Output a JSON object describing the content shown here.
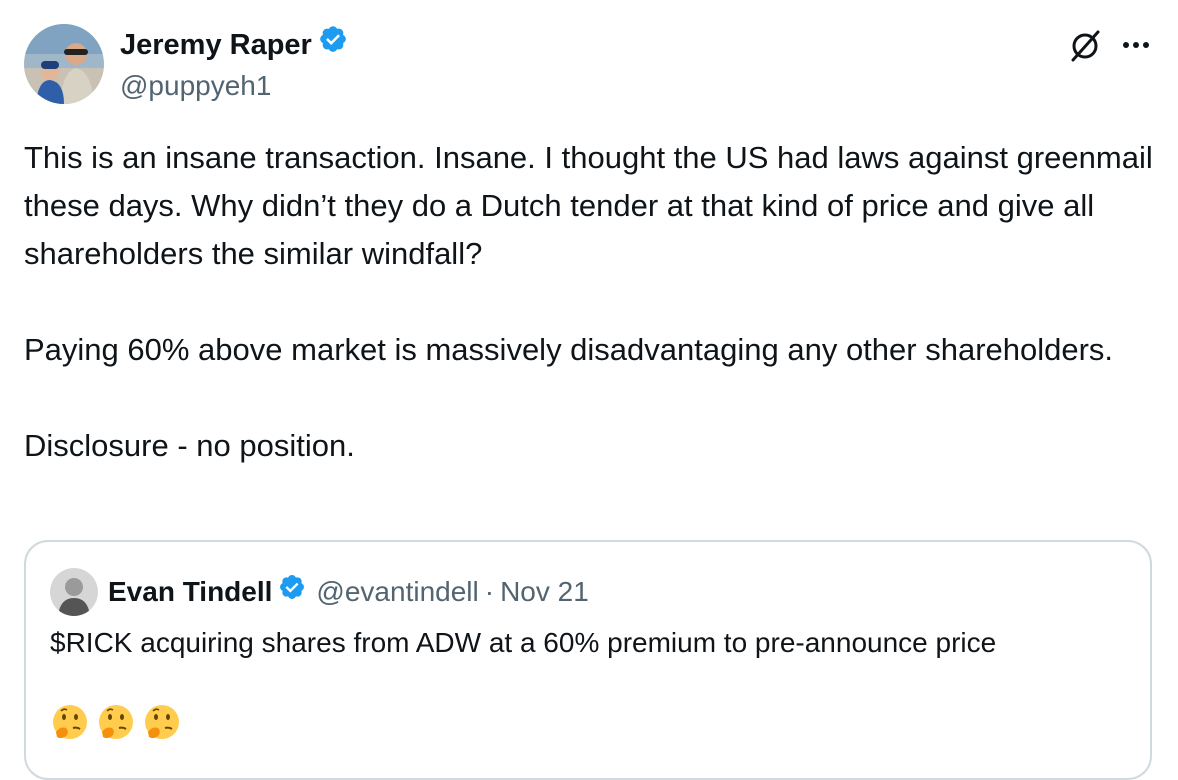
{
  "author": {
    "name": "Jeremy Raper",
    "handle": "@puppyeh1",
    "verified": true,
    "avatar_icon": "avatar-photo"
  },
  "header_icons": [
    "grok-icon",
    "more-options-icon"
  ],
  "tweet": {
    "paragraphs": [
      "This is an insane transaction. Insane. I thought the US had laws against greenmail these days. Why didn’t they do a Dutch tender at that kind of price and give all shareholders the similar windfall?",
      "Paying 60% above market is massively disadvantaging any other shareholders.",
      "Disclosure - no position."
    ]
  },
  "quote": {
    "name": "Evan Tindell",
    "handle": "@evantindell",
    "separator": "·",
    "date": "Nov 21",
    "verified": true,
    "text": "$RICK acquiring shares from ADW at a 60% premium to pre-announce price",
    "emojis": [
      "thinking-face-emoji",
      "thinking-face-emoji",
      "thinking-face-emoji"
    ]
  },
  "colors": {
    "text": "#0f1419",
    "secondary": "#536471",
    "verified_blue": "#1d9bf0",
    "border": "#cfd9de"
  }
}
